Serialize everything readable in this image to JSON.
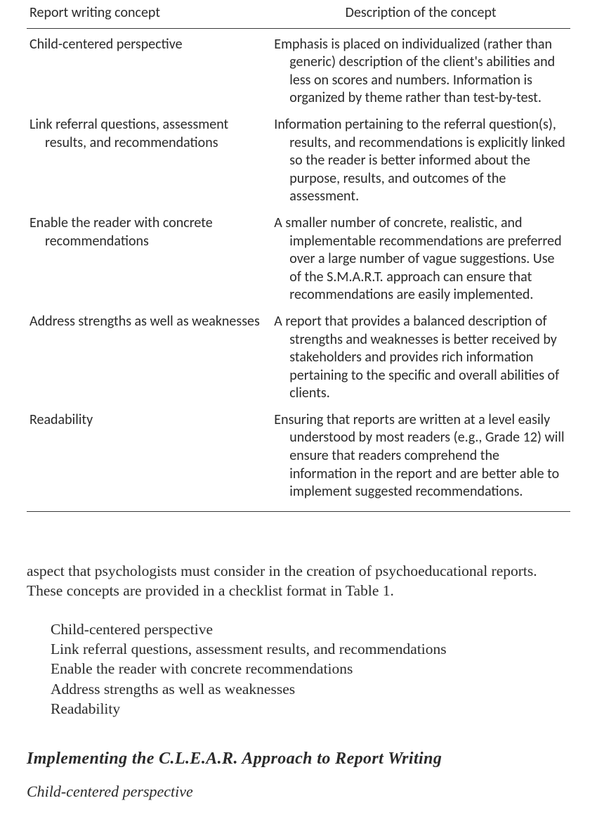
{
  "table": {
    "header_concept": "Report writing concept",
    "header_description": "Description of the concept",
    "rows": [
      {
        "concept": "Child-centered perspective",
        "description": "Emphasis is placed on individualized (rather than generic) description of the client's abilities and less on scores and numbers. Information is organized by theme rather than test-by-test."
      },
      {
        "concept": "Link referral questions, assessment results, and recommendations",
        "description": "Information pertaining to the referral question(s), results, and recommendations is explicitly linked so the reader is better informed about the purpose, results, and outcomes of the assessment."
      },
      {
        "concept": "Enable the reader with concrete recommendations",
        "description": "A smaller number of concrete, realistic, and implementable recommendations are preferred over a large number of vague suggestions. Use of the S.M.A.R.T. approach can ensure that recommendations are easily implemented."
      },
      {
        "concept": "Address strengths as well as weaknesses",
        "description": "A report that provides a balanced description of strengths and weaknesses is better received by stakeholders and provides rich information pertaining to the specific and overall abilities of clients."
      },
      {
        "concept": "Readability",
        "description": "Ensuring that reports are written at a level easily understood by most readers (e.g., Grade 12) will ensure that readers comprehend the information in the report and are better able to implement suggested recommendations."
      }
    ]
  },
  "paragraph": "aspect that psychologists must consider in the creation of psychoeducational reports. These concepts are provided in a checklist format in Table 1.",
  "checklist": [
    "Child-centered perspective",
    "Link referral questions, assessment results, and recommendations",
    "Enable the reader with concrete recommendations",
    "Address strengths as well as weaknesses",
    "Readability"
  ],
  "section_heading": "Implementing the C.L.E.A.R. Approach to Report Writing",
  "subsection_heading": "Child-centered perspective"
}
